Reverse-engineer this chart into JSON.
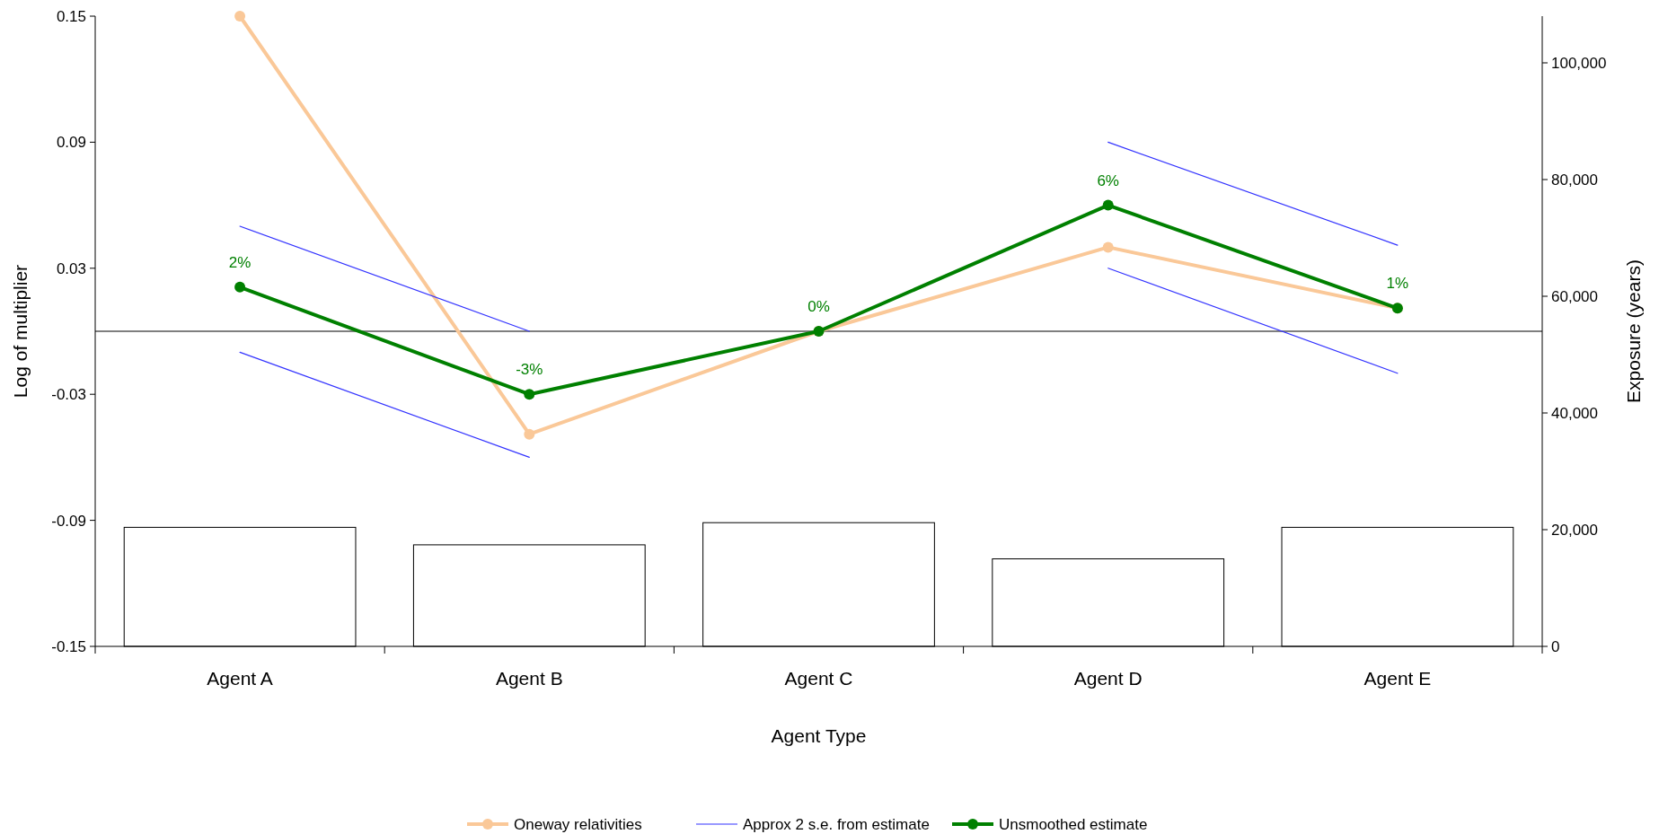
{
  "chart_data": {
    "type": "line",
    "xlabel": "Agent Type",
    "ylabel": "Log of multiplier",
    "y2label": "Exposure (years)",
    "categories": [
      "Agent A",
      "Agent B",
      "Agent C",
      "Agent D",
      "Agent E"
    ],
    "ylim": [
      -0.15,
      0.15
    ],
    "yticks": [
      0.15,
      0.09,
      0.03,
      -0.03,
      -0.09,
      -0.15
    ],
    "y2lim": [
      0,
      108000
    ],
    "y2ticks": [
      0,
      {
        "value": 20000,
        "label": "20,000"
      },
      {
        "value": 40000,
        "label": "40,000"
      },
      {
        "value": 60000,
        "label": "60,000"
      },
      {
        "value": 80000,
        "label": "80,000"
      },
      {
        "value": 100000,
        "label": "100,000"
      }
    ],
    "series": [
      {
        "type": "bar",
        "axis": "y2",
        "color": "#ffffff",
        "values": [
          20400,
          17400,
          21200,
          15000,
          20400
        ]
      },
      {
        "name": "Oneway relativities",
        "color": "#fac898",
        "marker": "circle",
        "values": [
          0.15,
          -0.049,
          0,
          0.04,
          0.011
        ]
      },
      {
        "name": "Approx 2 s.e. from estimate",
        "color": "#3333ff",
        "marker": "none",
        "values": [
          0.05,
          0,
          null,
          0.09,
          0.041
        ]
      },
      {
        "color": "#3333ff",
        "marker": "none",
        "values": [
          -0.01,
          -0.06,
          null,
          0.03,
          -0.02
        ]
      },
      {
        "name": "Unsmoothed estimate",
        "color": "#008000",
        "marker": "circle",
        "values": [
          0.021,
          -0.03,
          0,
          0.06,
          0.011
        ],
        "value_labels": [
          "2%",
          "-3%",
          "0%",
          "6%",
          "1%"
        ]
      }
    ],
    "ref_lines": [
      {
        "axis": "y",
        "value": 0,
        "color": "#000000"
      }
    ],
    "grid": false,
    "legend": "bottom"
  }
}
